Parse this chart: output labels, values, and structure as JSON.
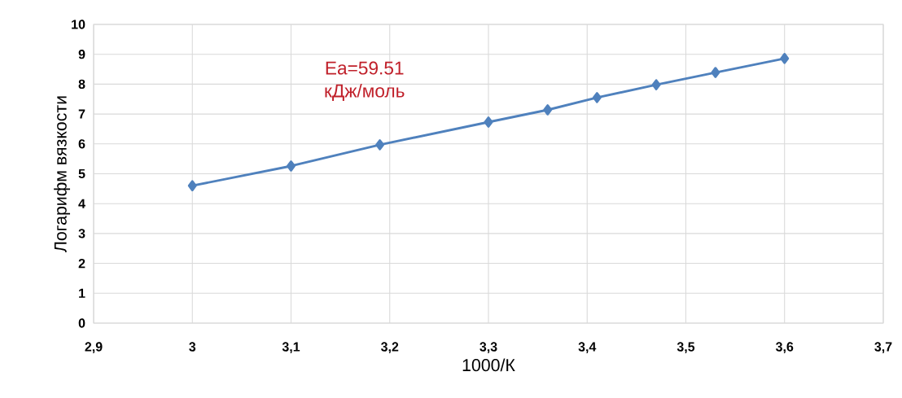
{
  "chart_data": {
    "type": "line",
    "xlabel": "1000/К",
    "ylabel": "Логарифм вязкости",
    "x": [
      3.0,
      3.1,
      3.19,
      3.3,
      3.36,
      3.41,
      3.47,
      3.53,
      3.6
    ],
    "series": [
      {
        "color": "#4f81bd",
        "values": [
          4.6,
          5.26,
          5.97,
          6.73,
          7.14,
          7.55,
          7.98,
          8.39,
          8.86
        ]
      }
    ],
    "xlim": [
      2.9,
      3.7
    ],
    "xticks": [
      {
        "value": 2.9,
        "label": "2,9"
      },
      {
        "value": 3,
        "label": "3"
      },
      {
        "value": 3.1,
        "label": "3,1"
      },
      {
        "value": 3.2,
        "label": "3,2"
      },
      {
        "value": 3.3,
        "label": "3,3"
      },
      {
        "value": 3.4,
        "label": "3,4"
      },
      {
        "value": 3.5,
        "label": "3,5"
      },
      {
        "value": 3.6,
        "label": "3,6"
      },
      {
        "value": 3.7,
        "label": "3,7"
      }
    ],
    "ylim": [
      0,
      10
    ],
    "yticks": [
      0,
      1,
      2,
      3,
      4,
      5,
      6,
      7,
      8,
      9,
      10
    ],
    "annotations": [
      "Ea=59.51 кДж/моль"
    ],
    "grid": true,
    "marker": "diamond",
    "line_style": "solid"
  }
}
